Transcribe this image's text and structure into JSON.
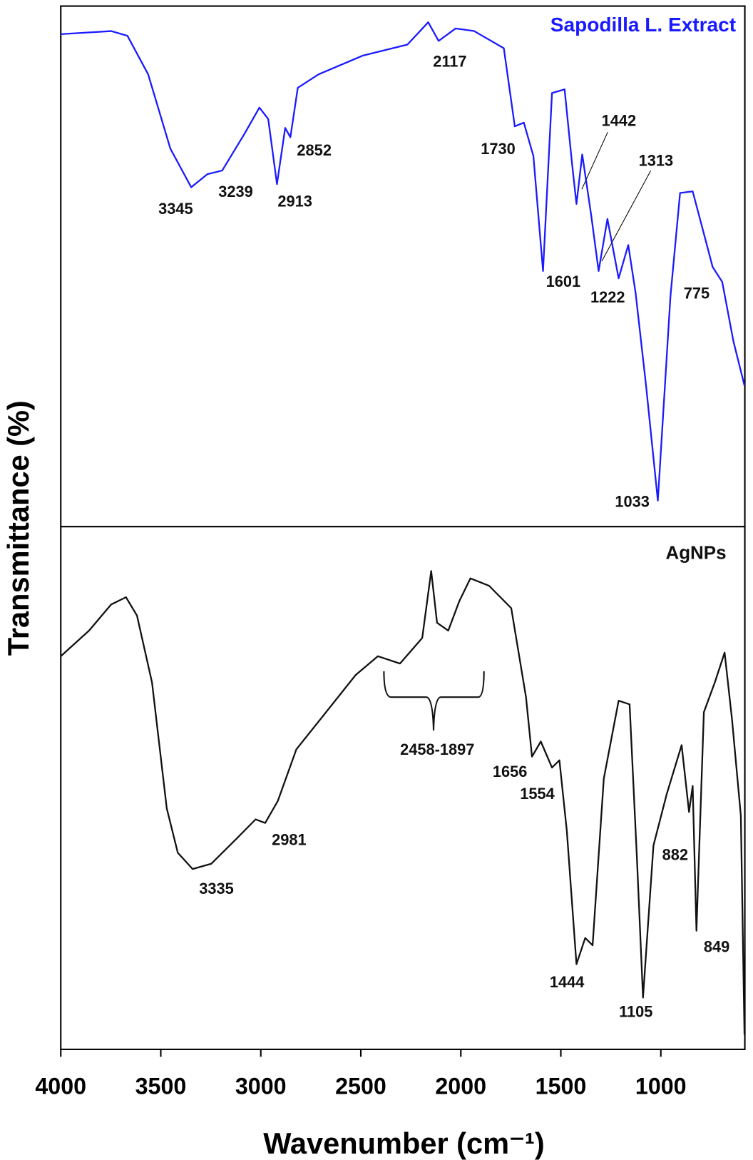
{
  "chart_data": [
    {
      "type": "line",
      "ylabel": "Transmittance (%)",
      "xlim": [
        4000,
        580
      ],
      "ylim": [
        0,
        100
      ],
      "x": [
        4000,
        3748,
        3667,
        3563,
        3452,
        3348,
        3267,
        3193,
        3081,
        3007,
        2963,
        2919,
        2878,
        2852,
        2815,
        2711,
        2489,
        2267,
        2163,
        2111,
        2026,
        1933,
        1785,
        1730,
        1685,
        1637,
        1589,
        1544,
        1481,
        1444,
        1422,
        1393,
        1348,
        1311,
        1267,
        1211,
        1163,
        1126,
        1074,
        1015,
        952,
        904,
        841,
        785,
        741,
        693,
        637,
        582
      ],
      "series": [
        {
          "name": "Sapodilla L. Extract",
          "color": "#1a1aff",
          "values": [
            94.6,
            95.2,
            94.3,
            86.9,
            72.6,
            65.2,
            67.7,
            68.4,
            75.5,
            80.5,
            78.3,
            65.8,
            76.6,
            74.8,
            84.3,
            86.9,
            90.5,
            92.6,
            96.9,
            93.3,
            95.7,
            95.2,
            91.9,
            76.9,
            77.6,
            71.2,
            49.1,
            83.3,
            84.0,
            69.8,
            62.0,
            71.5,
            59.8,
            49.1,
            59.1,
            47.7,
            54.1,
            44.9,
            27.1,
            5.0,
            44.2,
            64.1,
            64.4,
            56.3,
            49.9,
            47.0,
            35.6,
            27.1
          ]
        }
      ],
      "annotations": [
        "3345",
        "3239",
        "2913",
        "2852",
        "2117",
        "1730",
        "1442",
        "1313",
        "1601",
        "1222",
        "775",
        "1033"
      ]
    },
    {
      "type": "line",
      "xlabel": "Wavenumber (cm⁻¹)",
      "xlim": [
        4000,
        580
      ],
      "ylim": [
        0,
        100
      ],
      "xticks": [
        4000,
        3500,
        3000,
        2500,
        2000,
        1500,
        1000
      ],
      "x": [
        4000,
        3859,
        3748,
        3674,
        3619,
        3544,
        3470,
        3415,
        3341,
        3248,
        3119,
        3026,
        2978,
        2915,
        2822,
        2674,
        2526,
        2415,
        2304,
        2193,
        2148,
        2119,
        2063,
        2007,
        1952,
        1859,
        1748,
        1674,
        1644,
        1600,
        1544,
        1507,
        1470,
        1422,
        1378,
        1341,
        1285,
        1211,
        1156,
        1119,
        1089,
        1037,
        970,
        896,
        859,
        841,
        822,
        785,
        730,
        681,
        644,
        600,
        582
      ],
      "series": [
        {
          "name": "AgNPs",
          "color": "#111111",
          "values": [
            75.2,
            80.1,
            85.1,
            86.5,
            83.0,
            70.2,
            46.1,
            37.6,
            34.5,
            35.5,
            40.4,
            44.0,
            43.3,
            47.5,
            57.4,
            64.5,
            71.6,
            75.2,
            73.8,
            78.7,
            91.5,
            81.6,
            80.1,
            85.8,
            90.1,
            88.7,
            84.4,
            67.4,
            56.0,
            58.9,
            53.9,
            55.3,
            41.8,
            16.3,
            21.3,
            19.9,
            51.8,
            66.7,
            66.0,
            36.2,
            9.9,
            39.0,
            48.9,
            58.2,
            45.4,
            50.4,
            22.7,
            64.5,
            70.2,
            75.9,
            63.1,
            44.7,
            2.8
          ]
        }
      ],
      "annotations": [
        "2458-1897",
        "1656",
        "1554",
        "2981",
        "3335",
        "1444",
        "1105",
        "882",
        "849"
      ]
    }
  ]
}
